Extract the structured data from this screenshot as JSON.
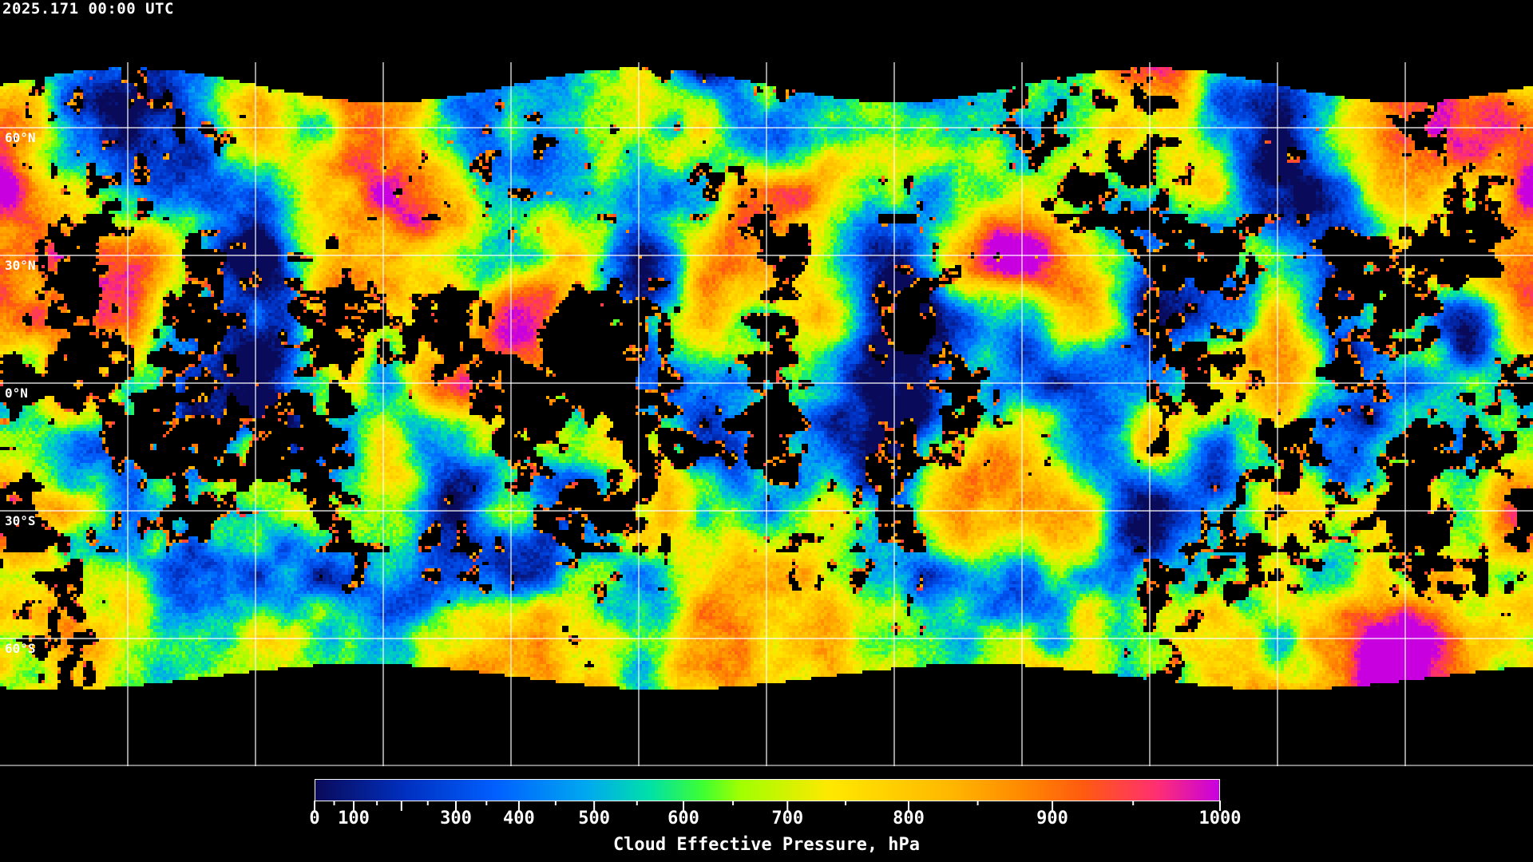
{
  "header": {
    "timestamp": "2025.171 00:00 UTC"
  },
  "map": {
    "projection": "equirectangular, global",
    "lat_labels": [
      "60°N",
      "30°N",
      "0°N",
      "30°S",
      "60°S"
    ],
    "grid_color": "#ffffff",
    "coastline_color": "#ffffff",
    "no_data_color": "#000000"
  },
  "colorbar": {
    "title": "Cloud Effective Pressure, hPa",
    "range": [
      0,
      1000
    ],
    "tick_labels": [
      "0",
      "100",
      "300",
      "400",
      "500",
      "600",
      "700",
      "800",
      "900",
      "1000"
    ],
    "minor_tick_step": 50,
    "colors": [
      "#0a0a5a",
      "#0030c0",
      "#0060ff",
      "#00a8f0",
      "#00e0a8",
      "#40ff30",
      "#a0ff00",
      "#ffe800",
      "#ffb800",
      "#ff8a00",
      "#ff5a10",
      "#ff3070",
      "#c800e0"
    ]
  }
}
